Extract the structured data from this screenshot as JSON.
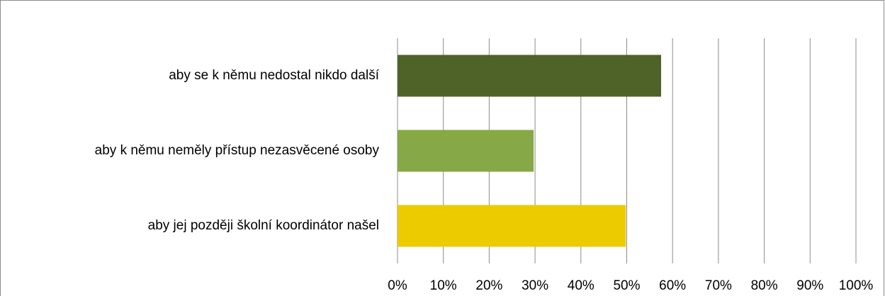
{
  "chart_data": {
    "type": "bar",
    "orientation": "horizontal",
    "categories": [
      "aby se k němu nedostal nikdo další",
      "aby k němu neměly přístup nezasvěcené osoby",
      "aby jej později školní koordinátor našel"
    ],
    "values": [
      57.5,
      29.7,
      49.8
    ],
    "colors": [
      "#4f6228",
      "#86a846",
      "#eccb00"
    ],
    "xlim": [
      0,
      100
    ],
    "xticks": [
      {
        "value": 0,
        "label": "0%"
      },
      {
        "value": 10,
        "label": "10%"
      },
      {
        "value": 20,
        "label": "20%"
      },
      {
        "value": 30,
        "label": "30%"
      },
      {
        "value": 40,
        "label": "40%"
      },
      {
        "value": 50,
        "label": "50%"
      },
      {
        "value": 60,
        "label": "60%"
      },
      {
        "value": 70,
        "label": "70%"
      },
      {
        "value": 80,
        "label": "80%"
      },
      {
        "value": 90,
        "label": "90%"
      },
      {
        "value": 100,
        "label": "100%"
      }
    ],
    "grid": true
  }
}
